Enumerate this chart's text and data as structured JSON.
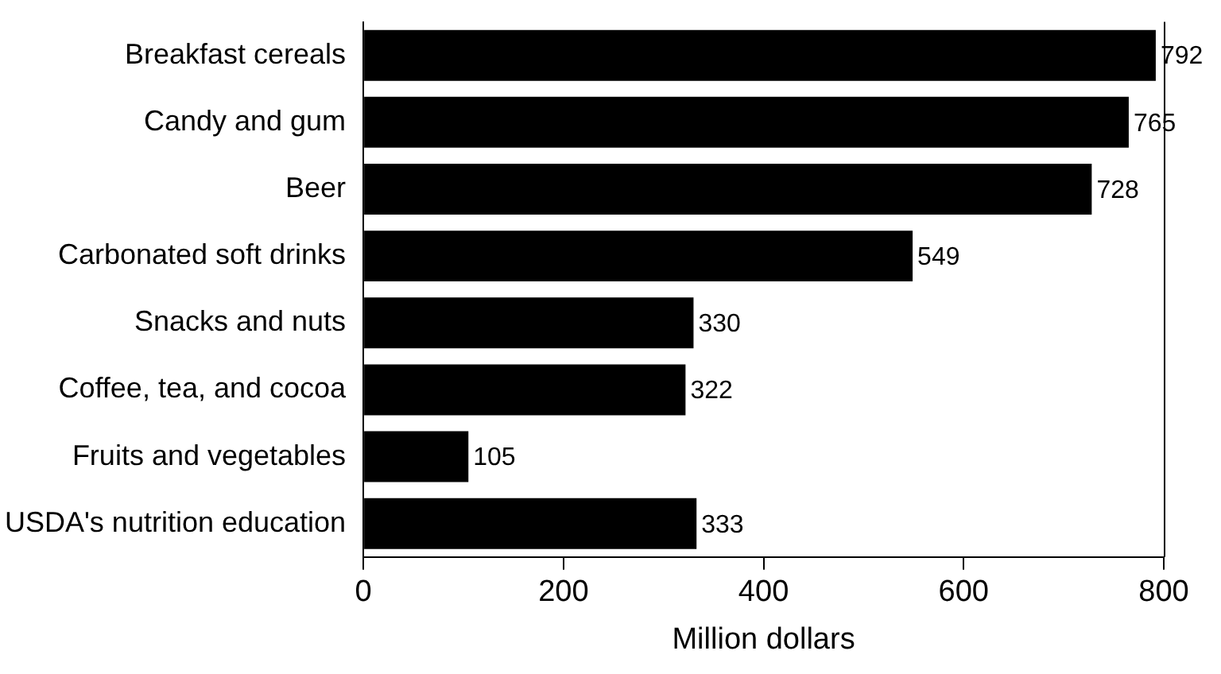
{
  "chart_data": {
    "type": "bar",
    "orientation": "horizontal",
    "xlabel": "Million dollars",
    "categories": [
      "Breakfast cereals",
      "Candy and gum",
      "Beer",
      "Carbonated soft drinks",
      "Snacks and nuts",
      "Coffee, tea, and cocoa",
      "Fruits and vegetables",
      "USDA's nutrition education"
    ],
    "values": [
      792,
      765,
      728,
      549,
      330,
      322,
      105,
      333
    ],
    "color": "#000000",
    "xlim": [
      0,
      800
    ],
    "xticks": [
      0,
      200,
      400,
      600,
      800
    ],
    "data_labels": true,
    "legend": false,
    "grid": false
  }
}
